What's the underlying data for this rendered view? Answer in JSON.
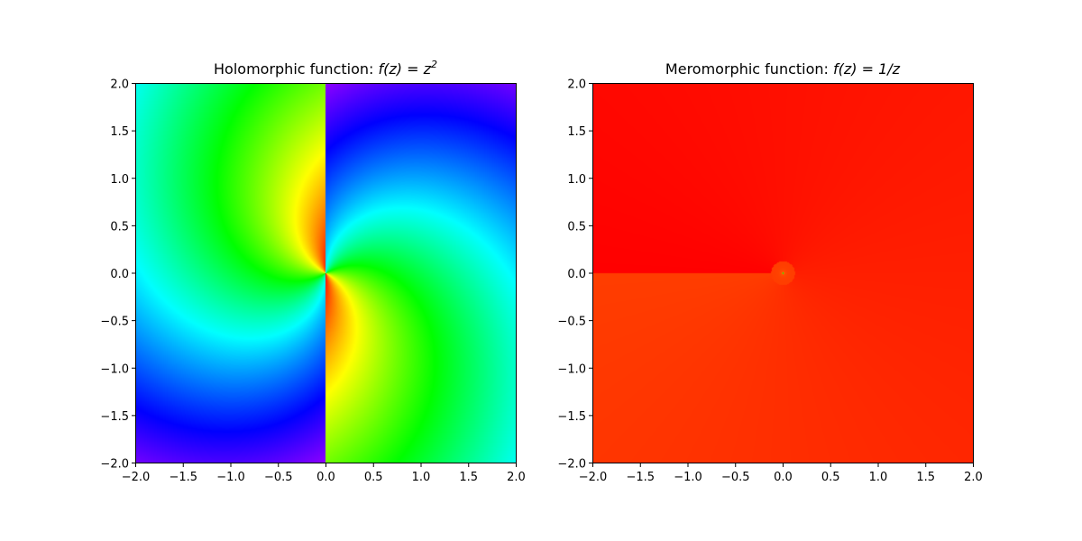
{
  "chart_data": [
    {
      "type": "heatmap",
      "colormap": "hsv",
      "quantity": "phase",
      "function": "z^2",
      "title": {
        "prefix": "Holomorphic function: ",
        "math": "f(z) = z",
        "sup": "2"
      },
      "xlabel": "",
      "ylabel": "",
      "xlim": [
        -2.0,
        2.0
      ],
      "ylim": [
        -2.0,
        2.0
      ],
      "x_ticks": [
        "−2.0",
        "−1.5",
        "−1.0",
        "−0.5",
        "0.0",
        "0.5",
        "1.0",
        "1.5",
        "2.0"
      ],
      "y_ticks": [
        "2.0",
        "1.5",
        "1.0",
        "0.5",
        "0.0",
        "−0.5",
        "−1.0",
        "−1.5",
        "−2.0"
      ],
      "grid": false
    },
    {
      "type": "heatmap",
      "colormap": "hsv",
      "quantity": "phase",
      "function": "1/z",
      "title": {
        "prefix": "Meromorphic function: ",
        "math": "f(z) = 1/z",
        "sup": ""
      },
      "xlabel": "",
      "ylabel": "",
      "xlim": [
        -2.0,
        2.0
      ],
      "ylim": [
        -2.0,
        2.0
      ],
      "x_ticks": [
        "−2.0",
        "−1.5",
        "−1.0",
        "−0.5",
        "0.0",
        "0.5",
        "1.0",
        "1.5",
        "2.0"
      ],
      "y_ticks": [
        "2.0",
        "1.5",
        "1.0",
        "0.5",
        "0.0",
        "−0.5",
        "−1.0",
        "−1.5",
        "−2.0"
      ],
      "grid": false
    }
  ]
}
